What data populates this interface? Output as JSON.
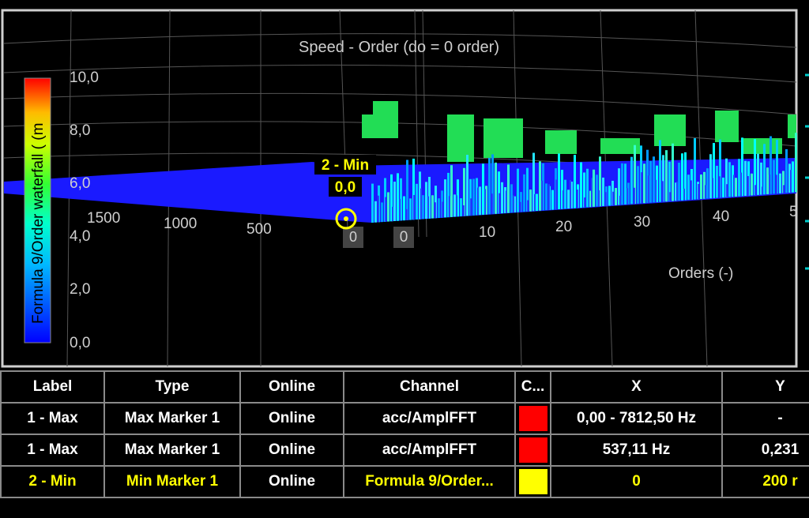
{
  "plot": {
    "title": "Speed - Order (do = 0 order)",
    "colorbar_label": "Formula 9/Order waterfall ( (m",
    "y_ticks": [
      "10,0",
      "8,0",
      "6,0",
      "4,0",
      "2,0",
      "0,0"
    ],
    "speed_ticks": [
      "1500",
      "1000",
      "500",
      "0"
    ],
    "order_ticks": [
      "0",
      "10",
      "20",
      "30",
      "40",
      "5"
    ],
    "order_axis_label": "Orders (-)",
    "marker": {
      "label": "2 - Min",
      "value": "0,0"
    },
    "colors": {
      "low": "#1a1aff",
      "mid": "#00ffff",
      "high": "#22dd44",
      "top": "#ff2200"
    }
  },
  "table": {
    "headers": [
      "Label",
      "Type",
      "Online",
      "Channel",
      "C...",
      "X",
      "Y"
    ],
    "rows": [
      {
        "label": "1 - Max",
        "type": "Max Marker 1",
        "online": "Online",
        "channel": "acc/AmplFFT",
        "color": "#ff0000",
        "x": "0,00 - 7812,50 Hz",
        "y": "-",
        "selected": false
      },
      {
        "label": "1 - Max",
        "type": "Max Marker 1",
        "online": "Online",
        "channel": "acc/AmplFFT",
        "color": "#ff0000",
        "x": "537,11 Hz",
        "y": "0,231",
        "selected": false
      },
      {
        "label": "2 - Min",
        "type": "Min Marker 1",
        "online": "Online",
        "channel": "Formula 9/Order...",
        "color": "#ffff00",
        "x": "0",
        "y": "200 r",
        "selected": true
      }
    ]
  }
}
